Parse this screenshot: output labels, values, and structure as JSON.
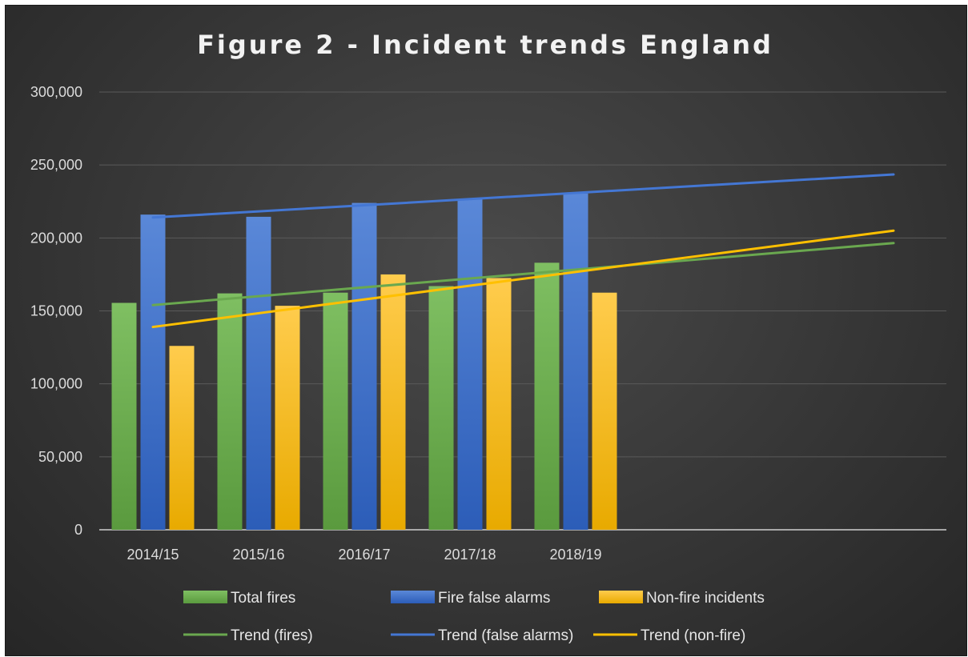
{
  "chart_data": {
    "type": "bar",
    "title": "Figure 2 - Incident trends England",
    "categories": [
      "2014/15",
      "2015/16",
      "2016/17",
      "2017/18",
      "2018/19"
    ],
    "ylim": [
      0,
      300000
    ],
    "yticks": [
      0,
      50000,
      100000,
      150000,
      200000,
      250000,
      300000
    ],
    "ytick_labels": [
      "0",
      "50,000",
      "100,000",
      "150,000",
      "200,000",
      "250,000",
      "300,000"
    ],
    "series": [
      {
        "name": "Total fires",
        "values": [
          155500,
          162000,
          162500,
          167000,
          183000
        ],
        "color": "#6aa84f"
      },
      {
        "name": "Fire false alarms",
        "values": [
          216000,
          214500,
          224000,
          226500,
          230500
        ],
        "color": "#3c6fc8"
      },
      {
        "name": "Non-fire incidents",
        "values": [
          126000,
          153500,
          175000,
          172500,
          162500
        ],
        "color": "#f6b81a"
      }
    ],
    "trendlines": [
      {
        "name": "Trend (fires)",
        "color": "#6aa84f",
        "start": 154000,
        "end": 196500
      },
      {
        "name": "Trend (false alarms)",
        "color": "#4477d4",
        "start": 214000,
        "end": 243500
      },
      {
        "name": "Trend (non-fire)",
        "color": "#ffc000",
        "start": 139000,
        "end": 205000
      }
    ],
    "grid": true,
    "legend_position": "bottom"
  }
}
